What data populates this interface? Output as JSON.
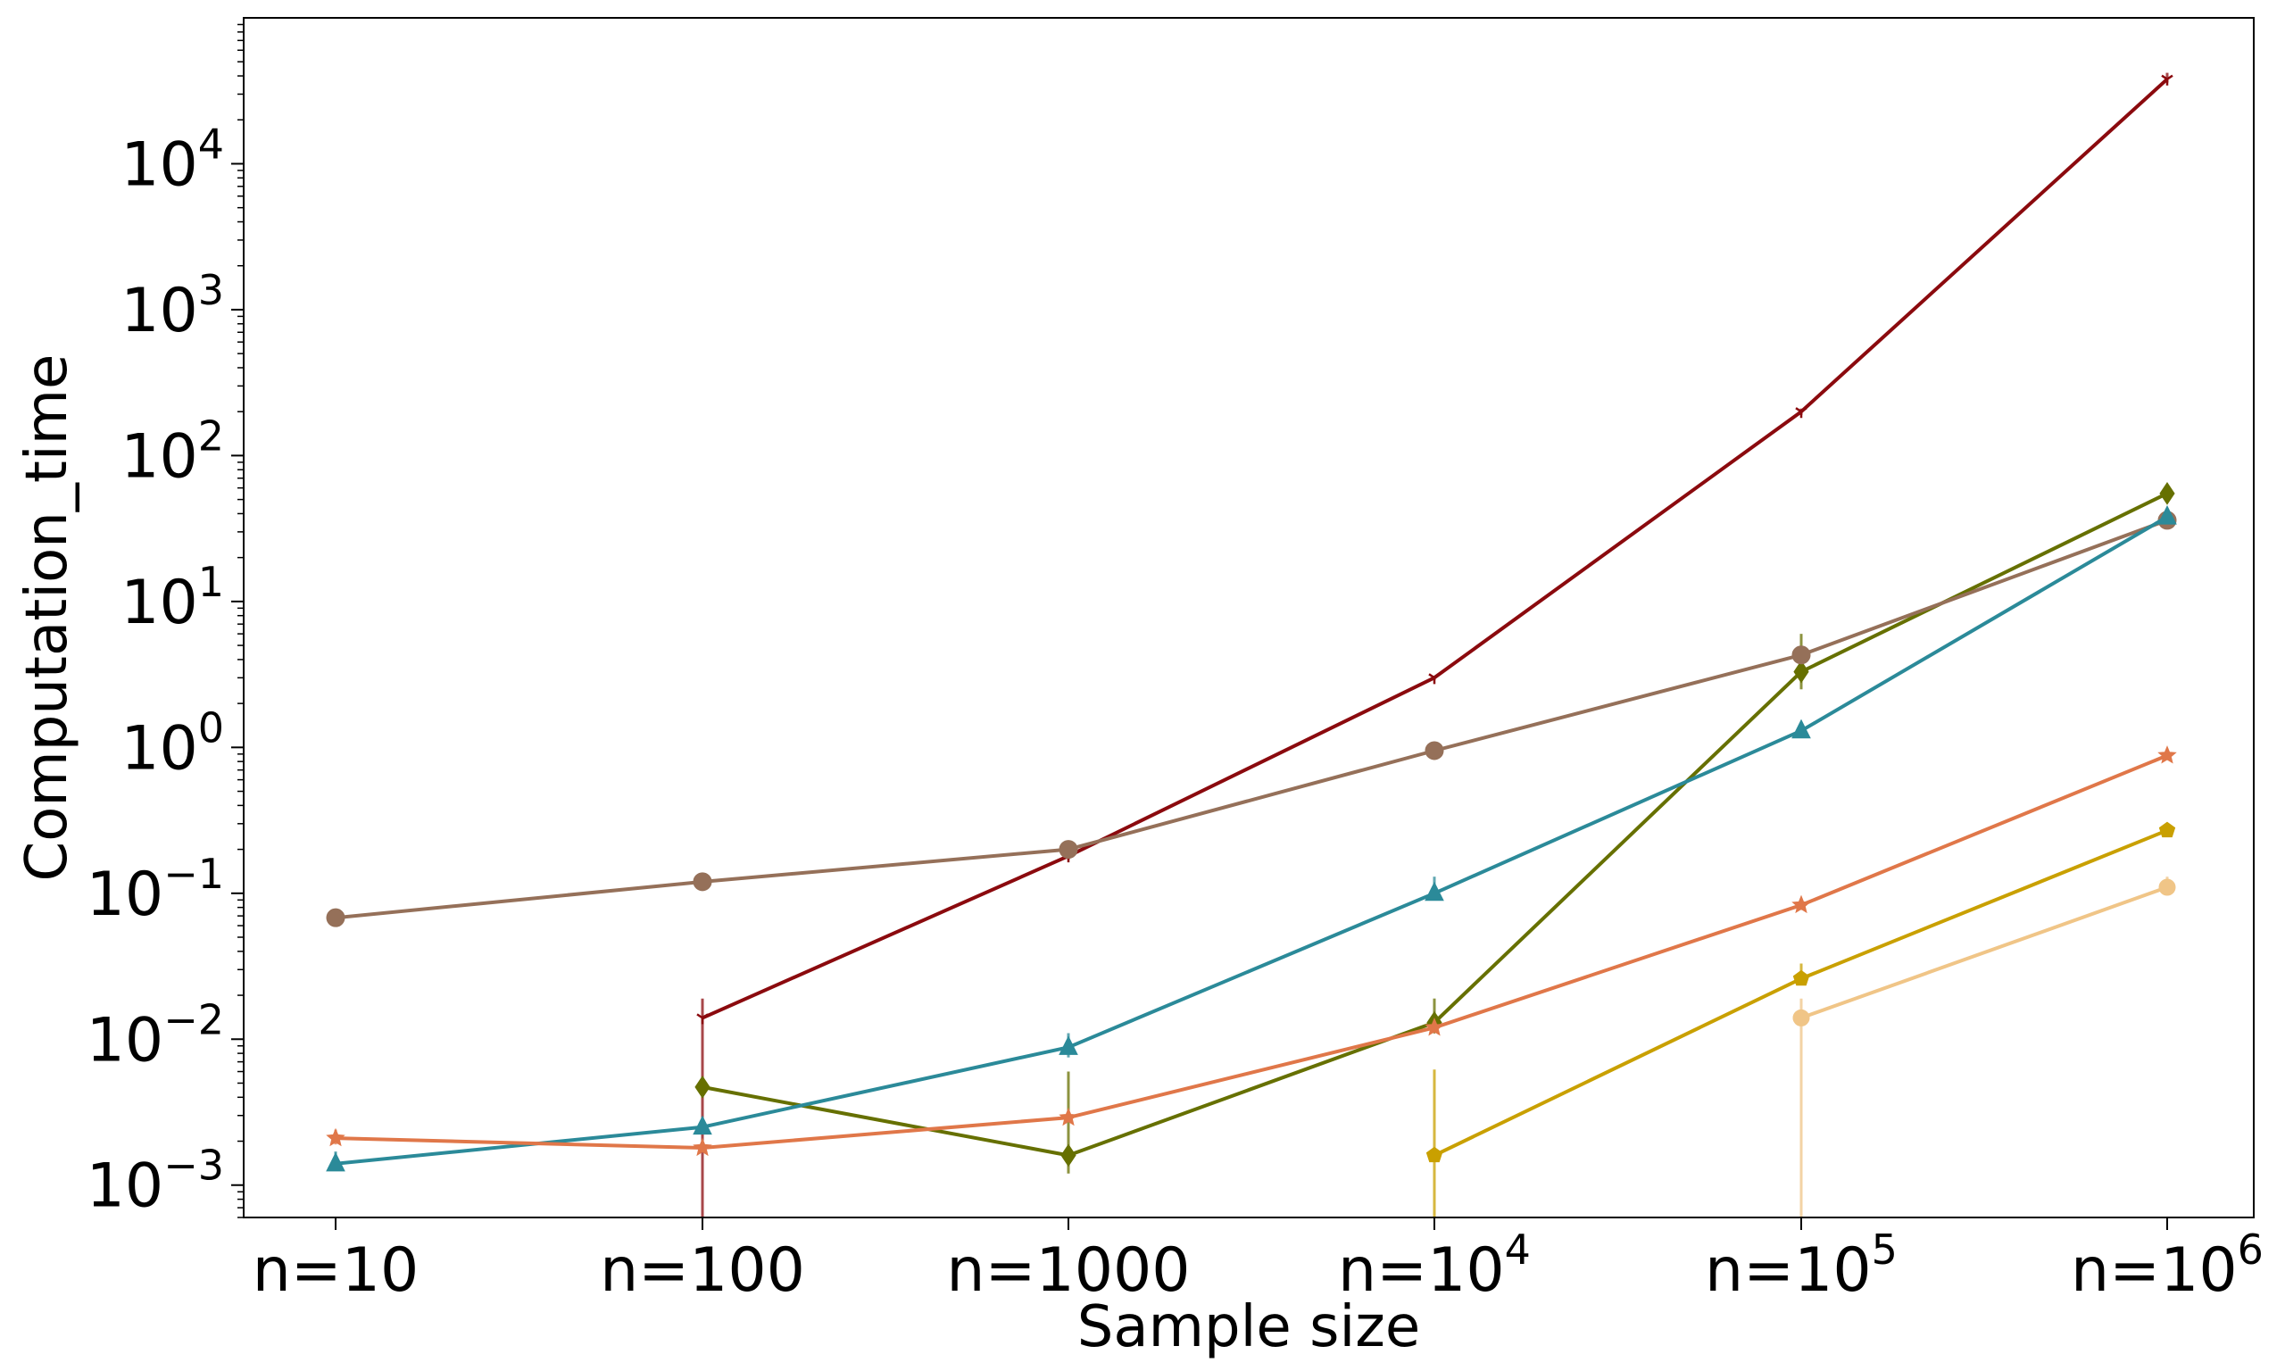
{
  "chart_data": {
    "type": "line",
    "title": "",
    "xlabel": "Sample size",
    "ylabel": "Computation_time",
    "y_scale": "log",
    "ylim": [
      0.0006,
      100000
    ],
    "grid": false,
    "x_tick_labels": [
      {
        "base": "n=10",
        "exp": ""
      },
      {
        "base": "n=100",
        "exp": ""
      },
      {
        "base": "n=1000",
        "exp": ""
      },
      {
        "base": "n=10",
        "exp": "4"
      },
      {
        "base": "n=10",
        "exp": "5"
      },
      {
        "base": "n=10",
        "exp": "6"
      }
    ],
    "y_tick_labels": [
      {
        "value": 0.001,
        "base": "10",
        "exp": "−3"
      },
      {
        "value": 0.01,
        "base": "10",
        "exp": "−2"
      },
      {
        "value": 0.1,
        "base": "10",
        "exp": "−1"
      },
      {
        "value": 1,
        "base": "10",
        "exp": "0"
      },
      {
        "value": 10,
        "base": "10",
        "exp": "1"
      },
      {
        "value": 100,
        "base": "10",
        "exp": "2"
      },
      {
        "value": 1000,
        "base": "10",
        "exp": "3"
      },
      {
        "value": 10000,
        "base": "10",
        "exp": "4"
      }
    ],
    "series": [
      {
        "color": "#8b0a0e",
        "marker": "tri",
        "values": [
          null,
          0.014,
          0.18,
          3.0,
          200,
          38000
        ],
        "err_low": [
          null,
          0.0006,
          0.17,
          2.9,
          190,
          36000
        ],
        "err_high": [
          null,
          0.019,
          0.19,
          3.1,
          210,
          42000
        ]
      },
      {
        "color": "#667000",
        "marker": "diamond",
        "values": [
          null,
          0.0047,
          0.0016,
          0.013,
          3.3,
          55
        ],
        "err_low": [
          null,
          0.004,
          0.0012,
          0.011,
          2.5,
          50
        ],
        "err_high": [
          null,
          0.0055,
          0.006,
          0.019,
          6.0,
          60
        ]
      },
      {
        "color": "#957059",
        "marker": "circle",
        "values": [
          0.068,
          0.12,
          0.2,
          0.95,
          4.3,
          36
        ],
        "err_low": [
          0.065,
          0.115,
          0.19,
          0.92,
          4.0,
          34
        ],
        "err_high": [
          0.072,
          0.125,
          0.21,
          0.98,
          4.6,
          38
        ]
      },
      {
        "color": "#2b8a99",
        "marker": "triangle",
        "values": [
          0.0014,
          0.0025,
          0.0088,
          0.1,
          1.3,
          38
        ],
        "err_low": [
          0.0013,
          0.0024,
          0.0075,
          0.09,
          1.2,
          36
        ],
        "err_high": [
          0.0017,
          0.0027,
          0.011,
          0.13,
          1.4,
          40
        ]
      },
      {
        "color": "#e07749",
        "marker": "star",
        "values": [
          0.0021,
          0.0018,
          0.0029,
          0.012,
          0.083,
          0.88
        ],
        "err_low": [
          0.0019,
          0.0017,
          0.0027,
          0.011,
          0.08,
          0.85
        ],
        "err_high": [
          0.0024,
          0.002,
          0.0031,
          0.013,
          0.087,
          0.91
        ]
      },
      {
        "color": "#c9a000",
        "marker": "pentagon",
        "values": [
          null,
          null,
          null,
          0.0016,
          0.026,
          0.27
        ],
        "err_low": [
          null,
          null,
          null,
          0.0006,
          0.024,
          0.26
        ],
        "err_high": [
          null,
          null,
          null,
          0.0062,
          0.033,
          0.28
        ]
      },
      {
        "color": "#f0c587",
        "marker": "circle-small",
        "values": [
          null,
          null,
          null,
          null,
          0.014,
          0.11
        ],
        "err_low": [
          null,
          null,
          null,
          null,
          0.0006,
          0.1
        ],
        "err_high": [
          null,
          null,
          null,
          null,
          0.019,
          0.13
        ]
      }
    ]
  }
}
